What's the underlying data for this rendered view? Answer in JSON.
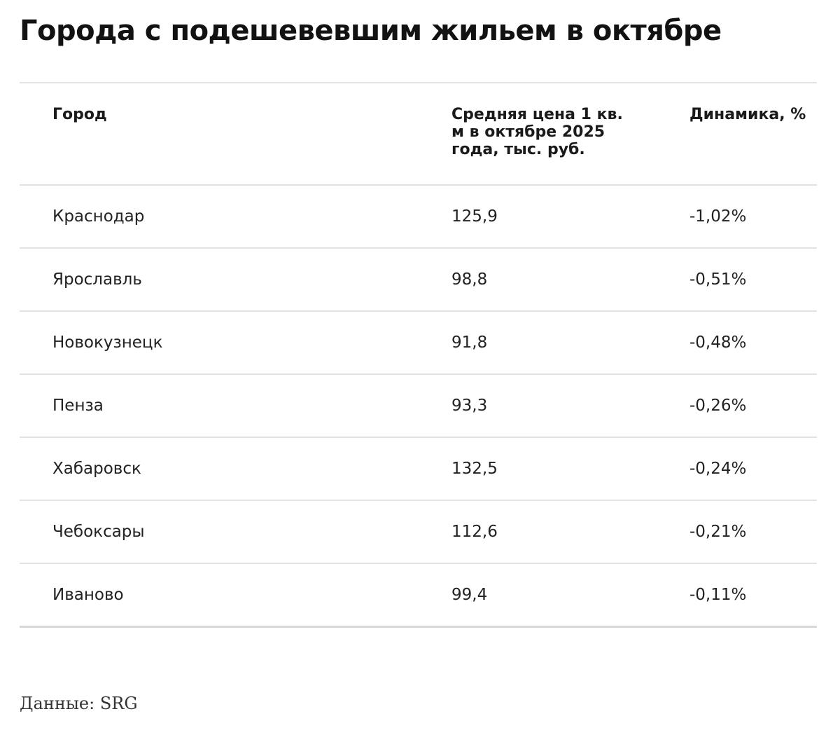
{
  "chart_data": {
    "type": "table",
    "title": "Города с подешевевшим жильем в октябре",
    "columns": [
      "Город",
      "Средняя цена 1 кв. м в октябре 2025 года, тыс. руб.",
      "Динамика, %"
    ],
    "rows": [
      {
        "city": "Краснодар",
        "price": "125,9",
        "change": "-1,02%"
      },
      {
        "city": "Ярославль",
        "price": "98,8",
        "change": "-0,51%"
      },
      {
        "city": "Новокузнецк",
        "price": "91,8",
        "change": "-0,48%"
      },
      {
        "city": "Пенза",
        "price": "93,3",
        "change": "-0,26%"
      },
      {
        "city": "Хабаровск",
        "price": "132,5",
        "change": "-0,24%"
      },
      {
        "city": "Чебоксары",
        "price": "112,6",
        "change": "-0,21%"
      },
      {
        "city": "Иваново",
        "price": "99,4",
        "change": "-0,11%"
      }
    ],
    "source": "Данные: SRG"
  }
}
